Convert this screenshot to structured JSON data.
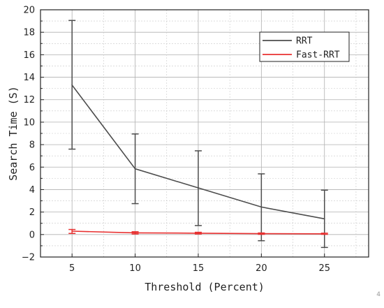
{
  "chart_data": {
    "type": "line",
    "title": "",
    "xlabel": "Threshold (Percent)",
    "ylabel": "Search Time (S)",
    "x": [
      5,
      10,
      15,
      20,
      25
    ],
    "xlim": [
      2.5,
      28.5
    ],
    "ylim": [
      -2,
      20
    ],
    "xticks": [
      5,
      10,
      15,
      20,
      25
    ],
    "yticks": [
      -2,
      0,
      2,
      4,
      6,
      8,
      10,
      12,
      14,
      16,
      18,
      20
    ],
    "grid": true,
    "legend_position": "top-right",
    "series": [
      {
        "name": "RRT",
        "color": "#4d4d4d",
        "values": [
          13.3,
          5.85,
          4.15,
          2.45,
          1.4
        ],
        "err_low": [
          7.6,
          2.75,
          0.8,
          -0.55,
          -1.15
        ],
        "err_high": [
          19.05,
          8.95,
          7.45,
          5.4,
          3.95
        ]
      },
      {
        "name": "Fast-RRT",
        "color": "#e83030",
        "values": [
          0.3,
          0.15,
          0.12,
          0.08,
          0.06
        ],
        "err_low": [
          0.1,
          0.05,
          0.05,
          0.02,
          0.02
        ],
        "err_high": [
          0.45,
          0.25,
          0.2,
          0.14,
          0.12
        ]
      }
    ]
  },
  "page_number": "4"
}
